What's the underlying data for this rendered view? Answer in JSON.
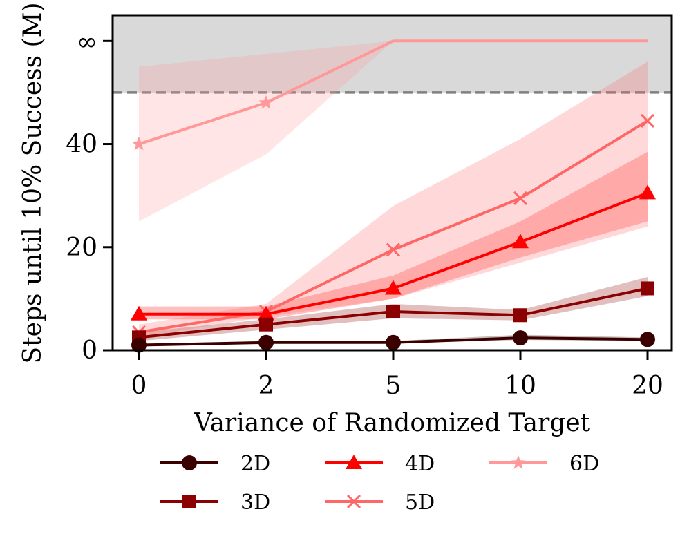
{
  "chart_data": {
    "type": "line",
    "xlabel": "Variance of Randomized Target",
    "ylabel": "Steps until 10% Success (M)",
    "categories": [
      "0",
      "2",
      "5",
      "10",
      "20"
    ],
    "yticks": [
      "0",
      "20",
      "40",
      "∞"
    ],
    "ylim": [
      0,
      65
    ],
    "infinity_value": 60,
    "threshold": 50,
    "threshold_style": "dashed",
    "shaded_region": [
      50,
      65
    ],
    "legend_position": "bottom",
    "series": [
      {
        "name": "2D",
        "marker": "circle",
        "color": "#3a0000",
        "values": [
          1.0,
          1.5,
          1.5,
          2.4,
          2.1
        ],
        "lower": [
          0.9,
          1.3,
          1.3,
          2.0,
          1.8
        ],
        "upper": [
          1.2,
          1.8,
          1.8,
          3.0,
          2.5
        ]
      },
      {
        "name": "3D",
        "marker": "square",
        "color": "#8b0000",
        "values": [
          2.5,
          5.0,
          7.5,
          6.8,
          12.0
        ],
        "lower": [
          1.8,
          4.0,
          6.2,
          5.8,
          10.5
        ],
        "upper": [
          3.5,
          6.0,
          9.0,
          7.8,
          14.2
        ]
      },
      {
        "name": "4D",
        "marker": "triangle",
        "color": "#ff0000",
        "values": [
          7.0,
          7.0,
          12.0,
          21.0,
          30.5
        ],
        "lower": [
          6.0,
          6.0,
          10.0,
          18.0,
          25.0
        ],
        "upper": [
          8.5,
          8.5,
          14.5,
          25.0,
          38.5
        ]
      },
      {
        "name": "5D",
        "marker": "x",
        "color": "#ff6666",
        "values": [
          3.5,
          7.5,
          19.5,
          29.5,
          44.5
        ],
        "lower": [
          2.5,
          6.5,
          10.0,
          17.0,
          24.0
        ],
        "upper": [
          5.0,
          9.0,
          28.0,
          41.0,
          56.0
        ]
      },
      {
        "name": "6D",
        "marker": "star",
        "color": "#ff9999",
        "values": [
          40.0,
          48.0,
          60.0,
          60.0,
          60.0
        ],
        "lower": [
          25.0,
          38.0,
          60.0,
          60.0,
          60.0
        ],
        "upper": [
          55.0,
          57.5,
          60.0,
          60.0,
          60.0
        ]
      }
    ]
  }
}
